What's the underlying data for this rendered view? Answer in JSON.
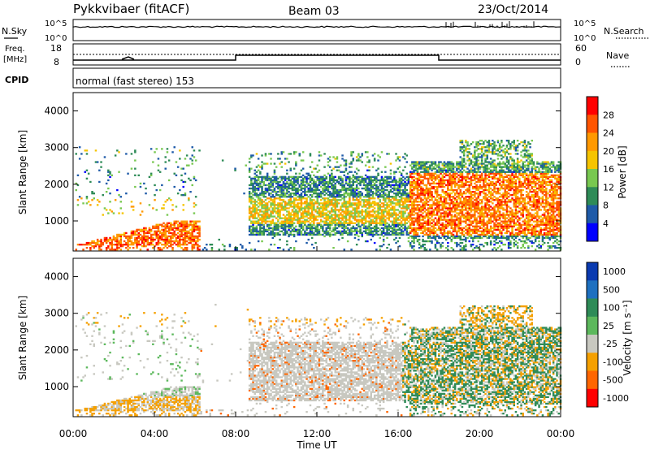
{
  "header": {
    "title": "Pykkvibaer (fitACF)",
    "beam": "Beam 03",
    "date": "23/Oct/2014"
  },
  "top_panels": {
    "nsky_label": "N.Sky",
    "nsky_ticks": [
      "10^5",
      "10^0"
    ],
    "nsearch_label": "N.Search",
    "nsearch_ticks": [
      "10^5",
      "10^0"
    ],
    "freq_label_1": "Freq.",
    "freq_label_2": "[MHz]",
    "freq_ticks": [
      "18",
      "8"
    ],
    "nave_label": "Nave",
    "nave_ticks": [
      "60",
      "0"
    ],
    "cpid_label": "CPID",
    "cpid_text": "normal (fast stereo) 153"
  },
  "chart_data": [
    {
      "type": "heatmap",
      "panel": "power",
      "ylabel": "Slant Range [km]",
      "ylim": [
        180,
        4500
      ],
      "yticks": [
        "4000",
        "3000",
        "2000",
        "1000"
      ],
      "yticks_values": [
        4000,
        3000,
        2000,
        1000
      ],
      "xlim": [
        0,
        24
      ],
      "colorbar": {
        "label": "Power [dB]",
        "ticks": [
          "28",
          "24",
          "20",
          "16",
          "12",
          "8",
          "4"
        ],
        "colors": [
          "#ff0000",
          "#ff5500",
          "#ff9900",
          "#f5c400",
          "#78c850",
          "#2e8b57",
          "#1e5aa8",
          "#0000ff"
        ]
      },
      "echo_regions": [
        {
          "t": [
            0.3,
            6.2
          ],
          "r": [
            300,
            2900
          ],
          "note": "scatter"
        },
        {
          "t": [
            1.2,
            6.1
          ],
          "r": [
            300,
            1050
          ]
        },
        {
          "t": [
            8.6,
            24.0
          ],
          "r": [
            350,
            3000
          ]
        },
        {
          "t": [
            17.5,
            22.6
          ],
          "r": [
            500,
            3200
          ]
        }
      ]
    },
    {
      "type": "heatmap",
      "panel": "velocity",
      "ylabel": "Slant Range [km]",
      "ylim": [
        180,
        4500
      ],
      "yticks": [
        "4000",
        "3000",
        "2000",
        "1000"
      ],
      "yticks_values": [
        4000,
        3000,
        2000,
        1000
      ],
      "xlim": [
        0,
        24
      ],
      "xlabel": "Time UT",
      "xticks": [
        "00:00",
        "04:00",
        "08:00",
        "12:00",
        "16:00",
        "20:00",
        "00:00"
      ],
      "colorbar": {
        "label": "Velocity [m s⁻¹]",
        "ticks": [
          "1000",
          "500",
          "100",
          "25",
          "-25",
          "-100",
          "-500",
          "-1000"
        ],
        "colors": [
          "#0a3ab0",
          "#1e70c0",
          "#2e8b57",
          "#5cb85c",
          "#c8c8c0",
          "#f5a000",
          "#ff6600",
          "#ff0000"
        ]
      }
    }
  ]
}
